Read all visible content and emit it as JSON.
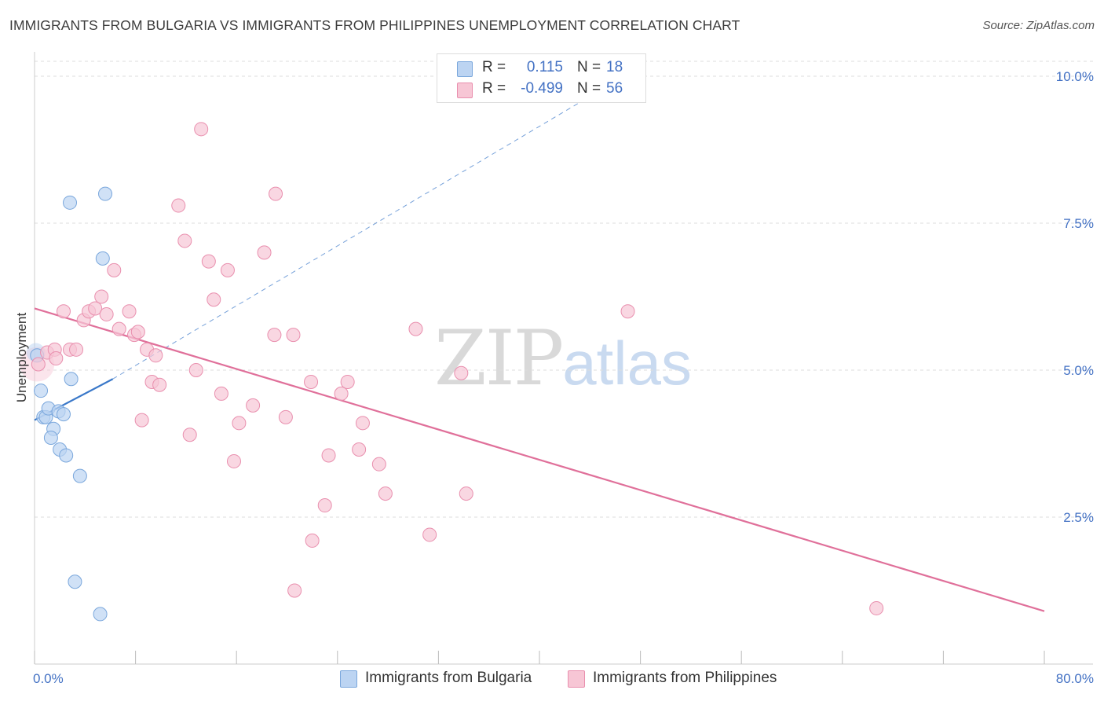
{
  "title": "IMMIGRANTS FROM BULGARIA VS IMMIGRANTS FROM PHILIPPINES UNEMPLOYMENT CORRELATION CHART",
  "source": "Source: ZipAtlas.com",
  "watermark": {
    "zip": "ZIP",
    "atlas": "atlas"
  },
  "legend": {
    "bulgaria": {
      "r_label": "R =",
      "r_value": "0.115",
      "n_label": "N =",
      "n_value": "18"
    },
    "philippines": {
      "r_label": "R =",
      "r_value": "-0.499",
      "n_label": "N =",
      "n_value": "56"
    }
  },
  "bottom_legend": {
    "bulgaria": "Immigrants from Bulgaria",
    "philippines": "Immigrants from Philippines"
  },
  "colors": {
    "bulgaria_fill": "#bcd4f2",
    "bulgaria_stroke": "#7aa7dc",
    "bulgaria_line": "#3a78c9",
    "philippines_fill": "#f7c6d5",
    "philippines_stroke": "#e98fae",
    "philippines_line": "#e0709a",
    "grid": "#dddddd",
    "axis_text": "#4472c4"
  },
  "chart_data": {
    "type": "scatter",
    "title": "IMMIGRANTS FROM BULGARIA VS IMMIGRANTS FROM PHILIPPINES UNEMPLOYMENT CORRELATION CHART",
    "xlabel": "",
    "ylabel": "Unemployment",
    "xlim": [
      0,
      80
    ],
    "ylim": [
      0,
      10.0
    ],
    "x_tick_labels": [
      "0.0%",
      "80.0%"
    ],
    "y_ticks": [
      2.5,
      5.0,
      7.5,
      10.0
    ],
    "y_tick_labels": [
      "2.5%",
      "5.0%",
      "7.5%",
      "10.0%"
    ],
    "grid": true,
    "legend_position": "top-center",
    "series": [
      {
        "name": "Immigrants from Bulgaria",
        "color_key": "bulgaria",
        "points": [
          [
            0.2,
            5.25
          ],
          [
            0.5,
            4.65
          ],
          [
            0.7,
            4.2
          ],
          [
            0.9,
            4.2
          ],
          [
            1.1,
            4.35
          ],
          [
            1.5,
            4.0
          ],
          [
            1.3,
            3.85
          ],
          [
            1.9,
            4.3
          ],
          [
            2.3,
            4.25
          ],
          [
            2.0,
            3.65
          ],
          [
            2.5,
            3.55
          ],
          [
            2.9,
            4.85
          ],
          [
            3.6,
            3.2
          ],
          [
            2.8,
            7.85
          ],
          [
            5.4,
            6.9
          ],
          [
            5.6,
            8.0
          ],
          [
            3.2,
            1.4
          ],
          [
            5.2,
            0.85
          ]
        ],
        "trend": {
          "x0": 0.0,
          "y0": 4.15,
          "x1": 6.2,
          "y1": 4.85,
          "dashed_to_x": 44.5,
          "dashed_to_y": 9.72
        }
      },
      {
        "name": "Immigrants from Philippines",
        "color_key": "philippines",
        "points": [
          [
            0.3,
            5.1
          ],
          [
            1.0,
            5.3
          ],
          [
            1.6,
            5.35
          ],
          [
            1.7,
            5.2
          ],
          [
            2.3,
            6.0
          ],
          [
            2.8,
            5.35
          ],
          [
            3.3,
            5.35
          ],
          [
            3.9,
            5.85
          ],
          [
            4.3,
            6.0
          ],
          [
            4.8,
            6.05
          ],
          [
            5.3,
            6.25
          ],
          [
            5.7,
            5.95
          ],
          [
            6.3,
            6.7
          ],
          [
            6.7,
            5.7
          ],
          [
            7.5,
            6.0
          ],
          [
            7.9,
            5.6
          ],
          [
            8.2,
            5.65
          ],
          [
            8.9,
            5.35
          ],
          [
            9.6,
            5.25
          ],
          [
            9.3,
            4.8
          ],
          [
            9.9,
            4.75
          ],
          [
            8.5,
            4.15
          ],
          [
            11.4,
            7.8
          ],
          [
            11.9,
            7.2
          ],
          [
            13.2,
            9.1
          ],
          [
            12.3,
            3.9
          ],
          [
            12.8,
            5.0
          ],
          [
            13.8,
            6.85
          ],
          [
            14.2,
            6.2
          ],
          [
            14.8,
            4.6
          ],
          [
            15.3,
            6.7
          ],
          [
            15.8,
            3.45
          ],
          [
            16.2,
            4.1
          ],
          [
            17.3,
            4.4
          ],
          [
            18.2,
            7.0
          ],
          [
            19.0,
            5.6
          ],
          [
            19.1,
            8.0
          ],
          [
            19.9,
            4.2
          ],
          [
            20.5,
            5.6
          ],
          [
            20.6,
            1.25
          ],
          [
            21.9,
            4.8
          ],
          [
            22.0,
            2.1
          ],
          [
            23.0,
            2.7
          ],
          [
            23.3,
            3.55
          ],
          [
            24.3,
            4.6
          ],
          [
            24.8,
            4.8
          ],
          [
            25.7,
            3.65
          ],
          [
            26.0,
            4.1
          ],
          [
            27.3,
            3.4
          ],
          [
            27.8,
            2.9
          ],
          [
            30.2,
            5.7
          ],
          [
            31.3,
            2.2
          ],
          [
            33.8,
            4.95
          ],
          [
            34.2,
            2.9
          ],
          [
            47.0,
            6.0
          ],
          [
            66.7,
            0.95
          ]
        ],
        "trend": {
          "x0": 0.0,
          "y0": 6.05,
          "x1": 80.0,
          "y1": 0.9
        }
      }
    ]
  }
}
